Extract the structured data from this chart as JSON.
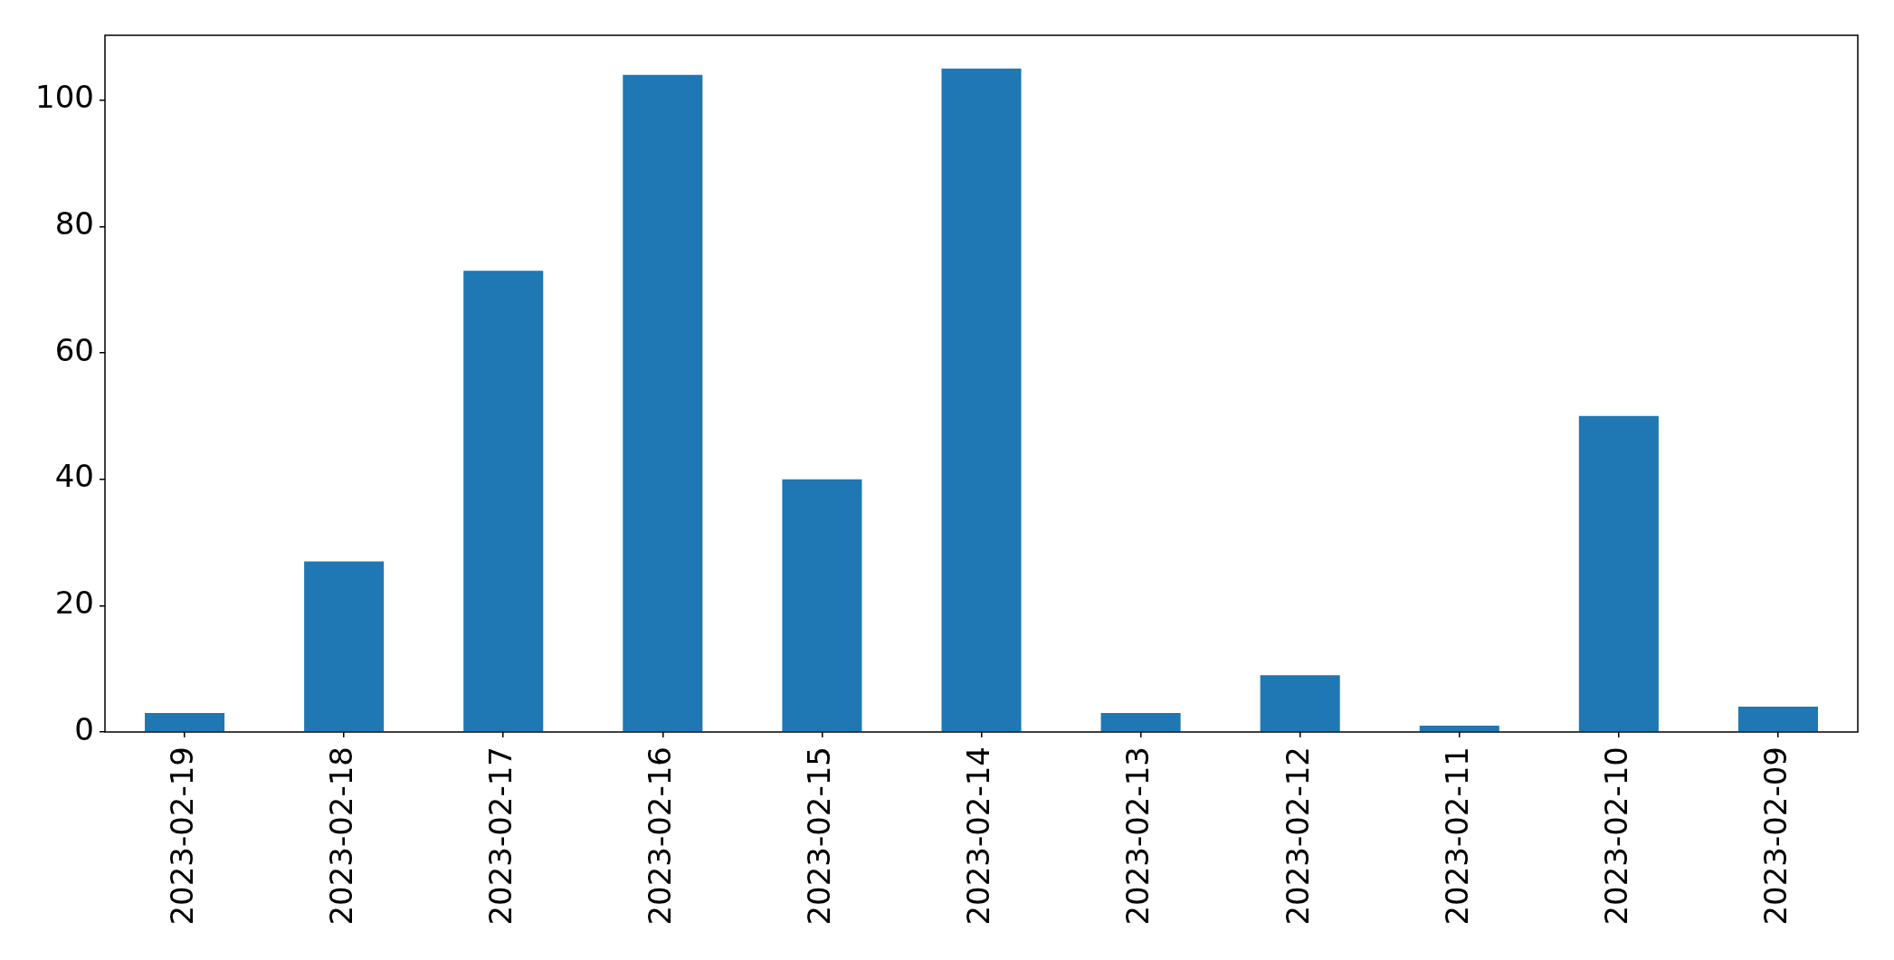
{
  "chart_data": {
    "type": "bar",
    "categories": [
      "2023-02-19",
      "2023-02-18",
      "2023-02-17",
      "2023-02-16",
      "2023-02-15",
      "2023-02-14",
      "2023-02-13",
      "2023-02-12",
      "2023-02-11",
      "2023-02-10",
      "2023-02-09"
    ],
    "values": [
      3,
      27,
      73,
      104,
      40,
      105,
      3,
      9,
      1,
      50,
      4
    ],
    "color": "#1f77b4",
    "ylim": [
      0,
      110.25
    ],
    "yticks": [
      0,
      20,
      40,
      60,
      80,
      100
    ]
  }
}
